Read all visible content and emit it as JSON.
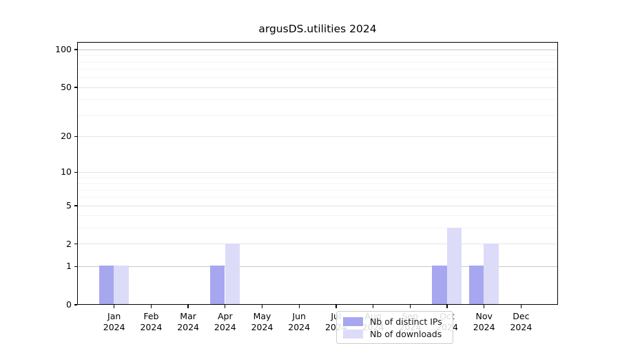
{
  "title": "argusDS.utilities 2024",
  "chart_data": {
    "type": "bar",
    "title": "argusDS.utilities 2024",
    "xlabel": "",
    "ylabel": "",
    "yscale": "log1p",
    "ylim": [
      0,
      115
    ],
    "y_major_ticks": [
      0,
      1,
      2,
      5,
      10,
      20,
      50,
      100
    ],
    "y_minor_ticks": [
      3,
      4,
      6,
      7,
      8,
      9,
      30,
      40,
      60,
      70,
      80,
      90
    ],
    "emphasized_gridlines": [
      1,
      100
    ],
    "grid": true,
    "legend_position": "lower center",
    "categories": [
      [
        "Jan",
        "2024"
      ],
      [
        "Feb",
        "2024"
      ],
      [
        "Mar",
        "2024"
      ],
      [
        "Apr",
        "2024"
      ],
      [
        "May",
        "2024"
      ],
      [
        "Jun",
        "2024"
      ],
      [
        "Jul",
        "2024"
      ],
      [
        "Aug",
        "2024"
      ],
      [
        "Sep",
        "2024"
      ],
      [
        "Oct",
        "2024"
      ],
      [
        "Nov",
        "2024"
      ],
      [
        "Dec",
        "2024"
      ]
    ],
    "series": [
      {
        "name": "Nb of distinct IPs",
        "color": "#a7a7f0",
        "values": [
          1,
          0,
          0,
          1,
          0,
          0,
          0,
          0,
          0,
          1,
          1,
          0
        ]
      },
      {
        "name": "Nb of downloads",
        "color": "#dcdcf8",
        "values": [
          1,
          0,
          0,
          2,
          0,
          0,
          0,
          0,
          0,
          3,
          2,
          0
        ]
      }
    ]
  },
  "legend": {
    "items": [
      {
        "label": "Nb of distinct IPs"
      },
      {
        "label": "Nb of downloads"
      }
    ]
  },
  "colors": {
    "bar_distinct_ips": "#a7a7f0",
    "bar_downloads": "#dcdcf8",
    "grid_major": "#e4e4e4",
    "grid_minor": "#f4f4f4",
    "grid_emphasis": "#c6c6c6",
    "axis": "#000000",
    "legend_border": "#cccccc"
  }
}
